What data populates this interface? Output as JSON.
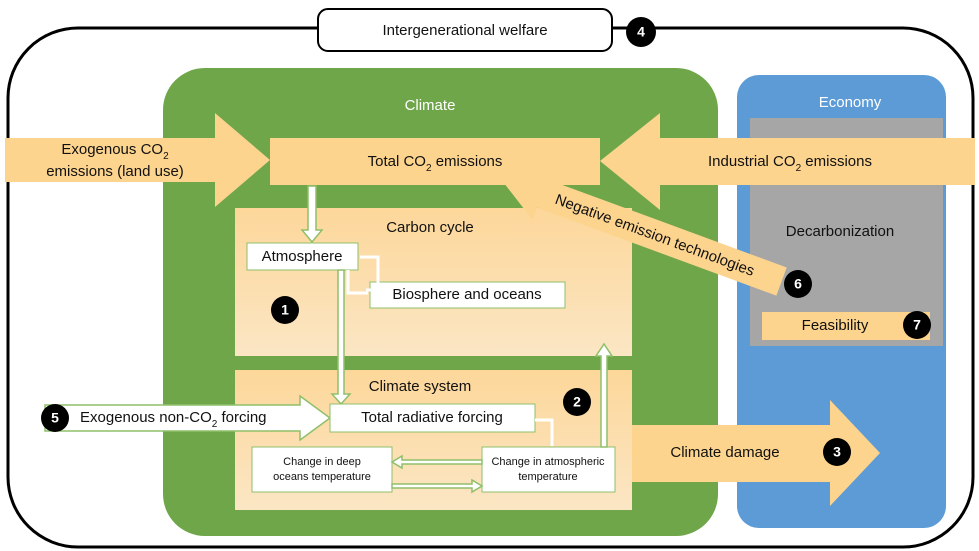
{
  "header": {
    "title": "Intergenerational welfare",
    "badge": "4"
  },
  "sections": {
    "climate": "Climate",
    "economy": "Economy",
    "carbon_cycle": "Carbon cycle",
    "climate_system": "Climate system",
    "decarbonization": "Decarbonization"
  },
  "nodes": {
    "exogenous_co2": [
      "Exogenous CO",
      "2",
      "emissions (land use)"
    ],
    "total_co2": [
      "Total CO",
      "2",
      " emissions"
    ],
    "industrial_co2": [
      "Industrial CO",
      "2",
      " emissions"
    ],
    "atmosphere": "Atmosphere",
    "biosphere": "Biosphere and oceans",
    "negative_emission": "Negative emission technologies",
    "feasibility": "Feasibility",
    "exogenous_forcing": [
      "Exogenous non-CO",
      "2",
      " forcing"
    ],
    "radiative_forcing": "Total radiative forcing",
    "deep_oceans": [
      "Change in deep",
      "oceans temperature"
    ],
    "atmospheric_temp": [
      "Change in atmospheric",
      "temperature"
    ],
    "climate_damage": "Climate damage"
  },
  "badges": {
    "carbon_cycle": "1",
    "climate_system": "2",
    "damage": "3",
    "forcing": "5",
    "negative": "6",
    "feasibility": "7"
  }
}
